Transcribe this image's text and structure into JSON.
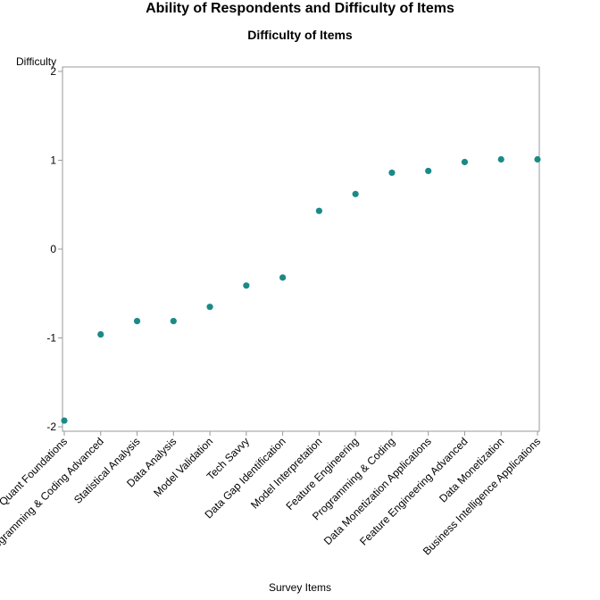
{
  "chart_data": {
    "type": "scatter",
    "title": "Ability of Respondents and Difficulty of Items",
    "subtitle": "Difficulty of Items",
    "xlabel": "Survey Items",
    "ylabel": "Difficulty",
    "ylim": [
      -2.05,
      2.05
    ],
    "yticks": [
      {
        "value": 2,
        "label": "2"
      },
      {
        "value": 1,
        "label": "1"
      },
      {
        "value": 0,
        "label": "0"
      },
      {
        "value": -1,
        "label": "-1"
      },
      {
        "value": -2,
        "label": "-2"
      }
    ],
    "grid": false,
    "marker_color": "#1a8a87",
    "categories": [
      "Quant Foundations",
      "Programming & Coding Advanced",
      "Statistical Analysis",
      "Data Analysis",
      "Model Validation",
      "Tech Savvy",
      "Data Gap Identification",
      "Model Interpretation",
      "Feature Engineering",
      "Programming & Coding",
      "Data Monetization Applications",
      "Feature Engineering Advanced",
      "Data Monetization",
      "Business Intelligence Applications"
    ],
    "values": [
      -1.93,
      -0.96,
      -0.81,
      -0.81,
      -0.65,
      -0.41,
      -0.32,
      0.43,
      0.62,
      0.86,
      0.88,
      0.98,
      1.01,
      1.01
    ]
  }
}
